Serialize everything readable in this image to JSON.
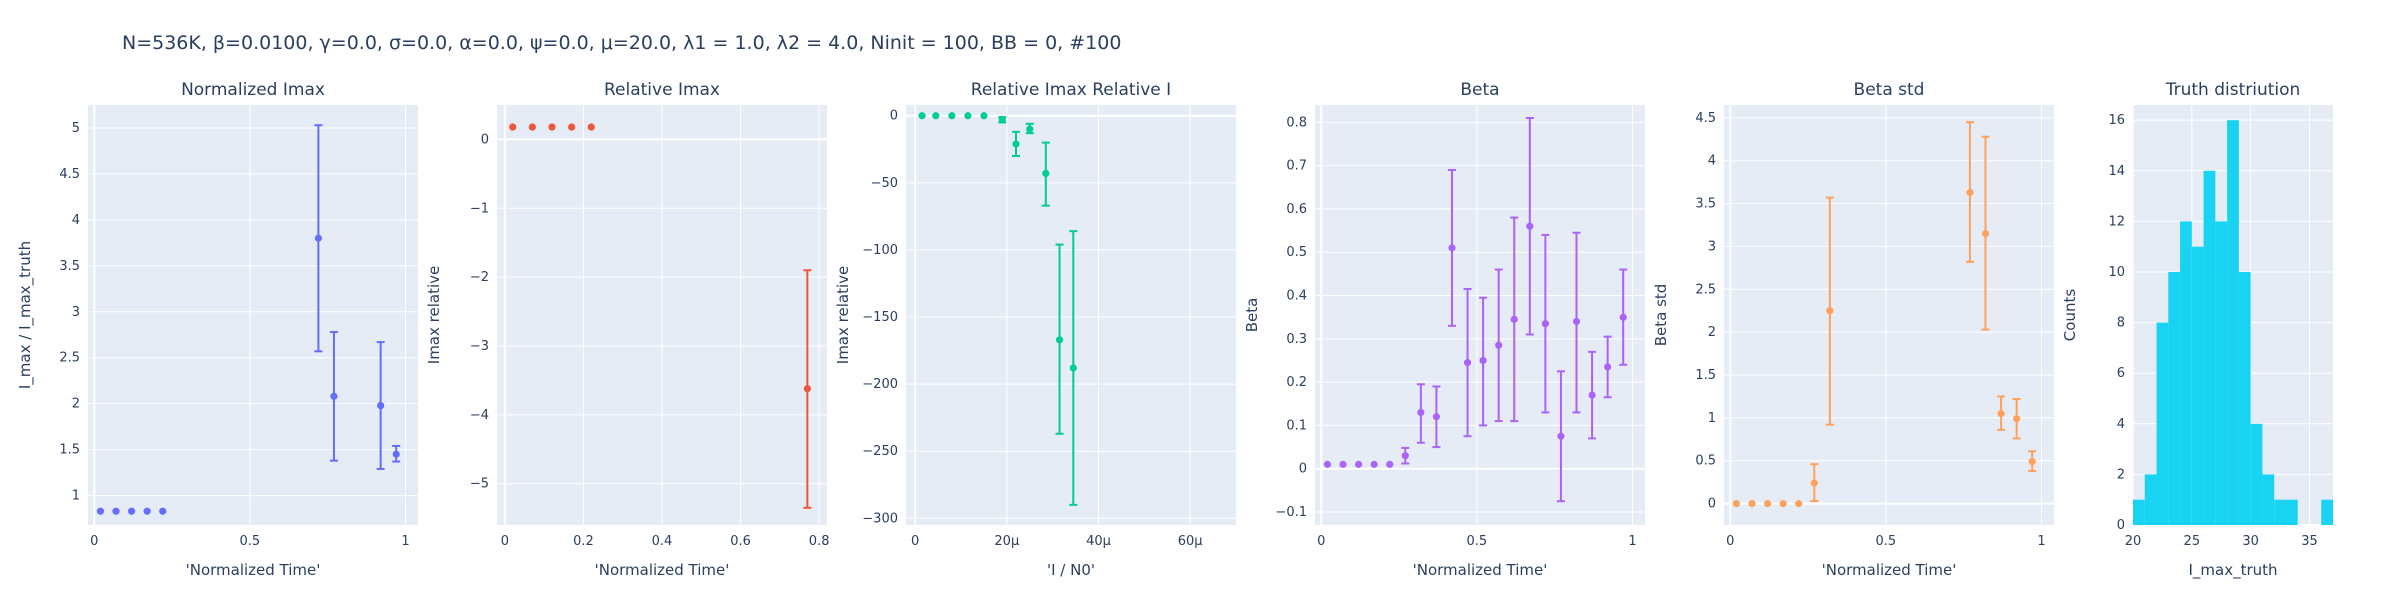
{
  "suptitle": "N=536K, β=0.0100, γ=0.0, σ=0.0,  α=0.0, ψ=0.0, μ=20.0, λ1 = 1.0, λ2 = 4.0, Ninit = 100, BB = 0, #100",
  "chart_data": [
    {
      "type": "scatter",
      "title": "Normalized Imax",
      "xlabel": "'Normalized Time'",
      "ylabel": "I_max / I_max_truth",
      "color": "#636efa",
      "xlim": [
        -0.02,
        1.04
      ],
      "ylim": [
        0.68,
        5.25
      ],
      "xticks": [
        0,
        0.5,
        1
      ],
      "xticklabels": [
        "0",
        "0.5",
        "1"
      ],
      "yticks": [
        1,
        1.5,
        2,
        2.5,
        3,
        3.5,
        4,
        4.5,
        5
      ],
      "yticklabels": [
        "1",
        "1.5",
        "2",
        "2.5",
        "3",
        "3.5",
        "4",
        "4.5",
        "5"
      ],
      "points": [
        {
          "x": 0.02,
          "y": 0.83
        },
        {
          "x": 0.07,
          "y": 0.83
        },
        {
          "x": 0.12,
          "y": 0.83
        },
        {
          "x": 0.17,
          "y": 0.83
        },
        {
          "x": 0.22,
          "y": 0.83
        },
        {
          "x": 0.72,
          "y": 3.8,
          "lo": 2.57,
          "hi": 5.03
        },
        {
          "x": 0.77,
          "y": 2.08,
          "lo": 1.38,
          "hi": 2.78
        },
        {
          "x": 0.92,
          "y": 1.98,
          "lo": 1.29,
          "hi": 2.67
        },
        {
          "x": 0.97,
          "y": 1.45,
          "lo": 1.37,
          "hi": 1.54
        }
      ]
    },
    {
      "type": "scatter",
      "title": "Relative Imax",
      "xlabel": "'Normalized Time'",
      "ylabel": "Imax relative",
      "color": "#ef553b",
      "xlim": [
        -0.02,
        0.82
      ],
      "ylim": [
        -5.6,
        0.5
      ],
      "xticks": [
        0,
        0.2,
        0.4,
        0.6,
        0.8
      ],
      "xticklabels": [
        "0",
        "0.2",
        "0.4",
        "0.6",
        "0.8"
      ],
      "yticks": [
        0,
        -1,
        -2,
        -3,
        -4,
        -5
      ],
      "yticklabels": [
        "0",
        "−1",
        "−2",
        "−3",
        "−4",
        "−5"
      ],
      "points": [
        {
          "x": 0.02,
          "y": 0.18
        },
        {
          "x": 0.07,
          "y": 0.18
        },
        {
          "x": 0.12,
          "y": 0.18
        },
        {
          "x": 0.17,
          "y": 0.18
        },
        {
          "x": 0.22,
          "y": 0.18
        },
        {
          "x": 0.77,
          "y": -3.62,
          "lo": -5.35,
          "hi": -1.9
        }
      ]
    },
    {
      "type": "scatter",
      "title": "Relative Imax Relative I",
      "xlabel": "'I / N0'",
      "ylabel": "Imax relative",
      "color": "#00cc96",
      "xlim": [
        -2e-06,
        7e-05
      ],
      "ylim": [
        -305,
        8
      ],
      "xticks": [
        0,
        2e-05,
        4e-05,
        6e-05
      ],
      "xticklabels": [
        "0",
        "20μ",
        "40μ",
        "60μ"
      ],
      "yticks": [
        0,
        -50,
        -100,
        -150,
        -200,
        -250,
        -300
      ],
      "yticklabels": [
        "0",
        "−50",
        "−100",
        "−150",
        "−200",
        "−250",
        "−300"
      ],
      "points": [
        {
          "x": 1.5e-06,
          "y": 0
        },
        {
          "x": 4.5e-06,
          "y": 0
        },
        {
          "x": 8e-06,
          "y": 0
        },
        {
          "x": 1.15e-05,
          "y": 0
        },
        {
          "x": 1.5e-05,
          "y": 0
        },
        {
          "x": 1.9e-05,
          "y": -3,
          "lo": -5,
          "hi": -1
        },
        {
          "x": 2.2e-05,
          "y": -21,
          "lo": -30,
          "hi": -12
        },
        {
          "x": 2.5e-05,
          "y": -10,
          "lo": -13,
          "hi": -6
        },
        {
          "x": 2.85e-05,
          "y": -43,
          "lo": -67,
          "hi": -20
        },
        {
          "x": 3.15e-05,
          "y": -167,
          "lo": -237,
          "hi": -96
        },
        {
          "x": 3.45e-05,
          "y": -188,
          "lo": -290,
          "hi": -86
        }
      ]
    },
    {
      "type": "scatter",
      "title": "Beta",
      "xlabel": "'Normalized Time'",
      "ylabel": "Beta",
      "color": "#ab63fa",
      "xlim": [
        -0.02,
        1.04
      ],
      "ylim": [
        -0.13,
        0.84
      ],
      "xticks": [
        0,
        0.5,
        1
      ],
      "xticklabels": [
        "0",
        "0.5",
        "1"
      ],
      "yticks": [
        -0.1,
        0,
        0.1,
        0.2,
        0.3,
        0.4,
        0.5,
        0.6,
        0.7,
        0.8
      ],
      "yticklabels": [
        "−0.1",
        "0",
        "0.1",
        "0.2",
        "0.3",
        "0.4",
        "0.5",
        "0.6",
        "0.7",
        "0.8"
      ],
      "points": [
        {
          "x": 0.02,
          "y": 0.01
        },
        {
          "x": 0.07,
          "y": 0.01
        },
        {
          "x": 0.12,
          "y": 0.01
        },
        {
          "x": 0.17,
          "y": 0.01
        },
        {
          "x": 0.22,
          "y": 0.01
        },
        {
          "x": 0.27,
          "y": 0.03,
          "lo": 0.012,
          "hi": 0.048
        },
        {
          "x": 0.32,
          "y": 0.13,
          "lo": 0.06,
          "hi": 0.195
        },
        {
          "x": 0.37,
          "y": 0.12,
          "lo": 0.05,
          "hi": 0.19
        },
        {
          "x": 0.42,
          "y": 0.51,
          "lo": 0.33,
          "hi": 0.69
        },
        {
          "x": 0.47,
          "y": 0.245,
          "lo": 0.075,
          "hi": 0.415
        },
        {
          "x": 0.52,
          "y": 0.25,
          "lo": 0.1,
          "hi": 0.395
        },
        {
          "x": 0.57,
          "y": 0.285,
          "lo": 0.11,
          "hi": 0.46
        },
        {
          "x": 0.62,
          "y": 0.345,
          "lo": 0.11,
          "hi": 0.58
        },
        {
          "x": 0.67,
          "y": 0.56,
          "lo": 0.31,
          "hi": 0.81
        },
        {
          "x": 0.72,
          "y": 0.335,
          "lo": 0.13,
          "hi": 0.54
        },
        {
          "x": 0.77,
          "y": 0.075,
          "lo": -0.075,
          "hi": 0.225
        },
        {
          "x": 0.82,
          "y": 0.34,
          "lo": 0.13,
          "hi": 0.545
        },
        {
          "x": 0.87,
          "y": 0.17,
          "lo": 0.07,
          "hi": 0.27
        },
        {
          "x": 0.92,
          "y": 0.235,
          "lo": 0.165,
          "hi": 0.305
        },
        {
          "x": 0.97,
          "y": 0.35,
          "lo": 0.24,
          "hi": 0.46
        }
      ]
    },
    {
      "type": "scatter",
      "title": "Beta std",
      "xlabel": "'Normalized Time'",
      "ylabel": "Beta std",
      "color": "#ffa15a",
      "xlim": [
        -0.02,
        1.04
      ],
      "ylim": [
        -0.25,
        4.65
      ],
      "xticks": [
        0,
        0.5,
        1
      ],
      "xticklabels": [
        "0",
        "0.5",
        "1"
      ],
      "yticks": [
        0,
        0.5,
        1,
        1.5,
        2,
        2.5,
        3,
        3.5,
        4,
        4.5
      ],
      "yticklabels": [
        "0",
        "0.5",
        "1",
        "1.5",
        "2",
        "2.5",
        "3",
        "3.5",
        "4",
        "4.5"
      ],
      "points": [
        {
          "x": 0.02,
          "y": 0
        },
        {
          "x": 0.07,
          "y": 0
        },
        {
          "x": 0.12,
          "y": 0
        },
        {
          "x": 0.17,
          "y": 0
        },
        {
          "x": 0.22,
          "y": 0
        },
        {
          "x": 0.27,
          "y": 0.24,
          "lo": 0.03,
          "hi": 0.46
        },
        {
          "x": 0.32,
          "y": 2.25,
          "lo": 0.92,
          "hi": 3.57
        },
        {
          "x": 0.77,
          "y": 3.63,
          "lo": 2.82,
          "hi": 4.45
        },
        {
          "x": 0.82,
          "y": 3.15,
          "lo": 2.03,
          "hi": 4.28
        },
        {
          "x": 0.87,
          "y": 1.05,
          "lo": 0.86,
          "hi": 1.25
        },
        {
          "x": 0.92,
          "y": 0.99,
          "lo": 0.76,
          "hi": 1.22
        },
        {
          "x": 0.97,
          "y": 0.49,
          "lo": 0.38,
          "hi": 0.61
        }
      ]
    },
    {
      "type": "bar",
      "title": "Truth distriution",
      "xlabel": "I_max_truth",
      "ylabel": "Counts",
      "color": "#19d3f3",
      "xlim": [
        20,
        37
      ],
      "ylim": [
        0,
        16.6
      ],
      "xticks": [
        20,
        25,
        30,
        35
      ],
      "xticklabels": [
        "20",
        "25",
        "30",
        "35"
      ],
      "yticks": [
        0,
        2,
        4,
        6,
        8,
        10,
        12,
        14,
        16
      ],
      "yticklabels": [
        "0",
        "2",
        "4",
        "6",
        "8",
        "10",
        "12",
        "14",
        "16"
      ],
      "bin_start": 20,
      "bin_width": 1,
      "counts": [
        1,
        2,
        8,
        10,
        12,
        11,
        14,
        12,
        16,
        10,
        4,
        2,
        1,
        1,
        0,
        0,
        1
      ]
    }
  ]
}
